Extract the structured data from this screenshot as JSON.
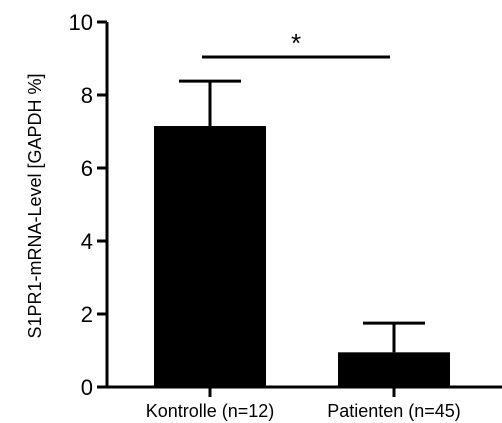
{
  "chart_data": {
    "type": "bar",
    "title": "",
    "xlabel": "",
    "ylabel": "S1PR1-mRNA-Level [GAPDH %]",
    "categories": [
      "Kontrolle (n=12)",
      "Patienten (n=45)"
    ],
    "values": [
      7.15,
      0.95
    ],
    "error_upper": [
      8.38,
      1.75
    ],
    "ylim": [
      0,
      10
    ],
    "yticks": [
      0,
      2,
      4,
      6,
      8,
      10
    ],
    "grid": false,
    "bar_color": "#000000",
    "significance": {
      "between": [
        0,
        1
      ],
      "label": "*"
    }
  }
}
